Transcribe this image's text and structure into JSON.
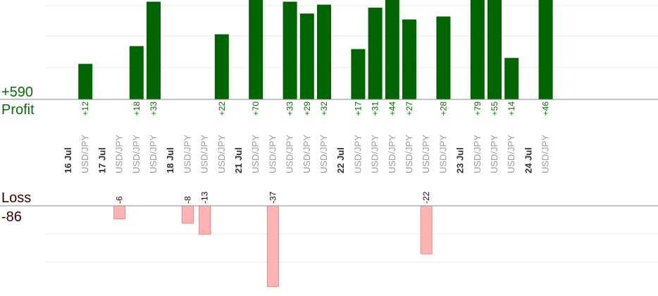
{
  "summary": {
    "profit_total": "+590",
    "profit_label": "Profit",
    "loss_label": "Loss",
    "loss_total": "-86"
  },
  "colors": {
    "profit_bar": "#006400",
    "profit_text": "#007000",
    "loss_bar": "#ffb3b3",
    "loss_bar_edge": "#e08a8a",
    "loss_text": "#330000",
    "axis": "#888888",
    "grid": "#e8e8e8"
  },
  "chart_data": {
    "type": "bar",
    "slots": [
      {
        "kind": "date",
        "label": "16 Jul"
      },
      {
        "kind": "trade",
        "pair": "USD/JPY",
        "value": 12
      },
      {
        "kind": "date",
        "label": "17 Jul"
      },
      {
        "kind": "trade",
        "pair": "USD/JPY",
        "value": -6
      },
      {
        "kind": "trade",
        "pair": "USD/JPY",
        "value": 18
      },
      {
        "kind": "trade",
        "pair": "USD/JPY",
        "value": 33
      },
      {
        "kind": "date",
        "label": "18 Jul"
      },
      {
        "kind": "trade",
        "pair": "USD/JPY",
        "value": -8
      },
      {
        "kind": "trade",
        "pair": "USD/JPY",
        "value": -13
      },
      {
        "kind": "trade",
        "pair": "USD/JPY",
        "value": 22
      },
      {
        "kind": "date",
        "label": "21 Jul"
      },
      {
        "kind": "trade",
        "pair": "USD/JPY",
        "value": 70
      },
      {
        "kind": "trade",
        "pair": "USD/JPY",
        "value": -37
      },
      {
        "kind": "trade",
        "pair": "USD/JPY",
        "value": 33
      },
      {
        "kind": "trade",
        "pair": "USD/JPY",
        "value": 29
      },
      {
        "kind": "trade",
        "pair": "USD/JPY",
        "value": 32
      },
      {
        "kind": "date",
        "label": "22 Jul"
      },
      {
        "kind": "trade",
        "pair": "USD/JPY",
        "value": 17
      },
      {
        "kind": "trade",
        "pair": "USD/JPY",
        "value": 31
      },
      {
        "kind": "trade",
        "pair": "USD/JPY",
        "value": 44
      },
      {
        "kind": "trade",
        "pair": "USD/JPY",
        "value": 27
      },
      {
        "kind": "trade",
        "pair": "USD/JPY",
        "value": -22
      },
      {
        "kind": "trade",
        "pair": "USD/JPY",
        "value": 28
      },
      {
        "kind": "date",
        "label": "23 Jul"
      },
      {
        "kind": "trade",
        "pair": "USD/JPY",
        "value": 79
      },
      {
        "kind": "trade",
        "pair": "USD/JPY",
        "value": 55
      },
      {
        "kind": "trade",
        "pair": "USD/JPY",
        "value": 14
      },
      {
        "kind": "date",
        "label": "24 Jul"
      },
      {
        "kind": "trade",
        "pair": "USD/JPY",
        "value": 46
      }
    ],
    "profit_axis_max": 33,
    "loss_axis_max": 37,
    "grid": true
  }
}
